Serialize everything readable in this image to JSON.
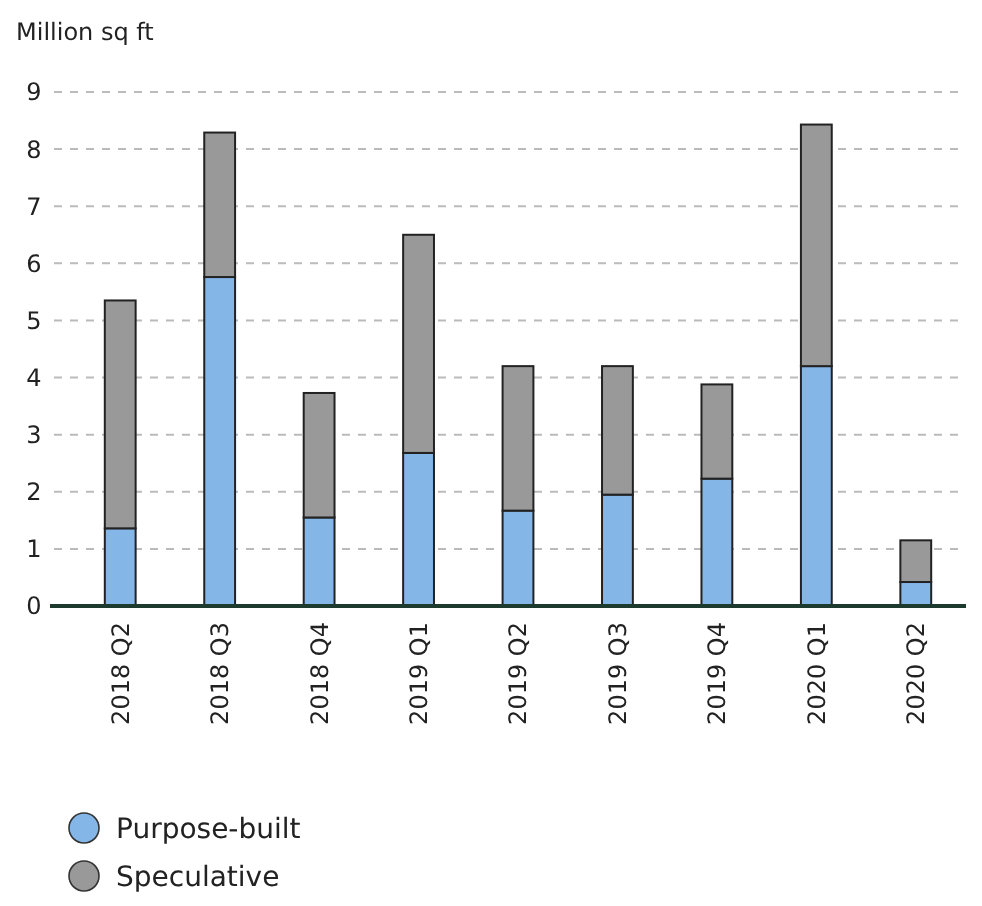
{
  "chart_data": {
    "type": "bar",
    "ylabel": "Million sq ft",
    "stacked": true,
    "categories": [
      "2018 Q2",
      "2018 Q3",
      "2018 Q4",
      "2019 Q1",
      "2019 Q2",
      "2019 Q3",
      "2019 Q4",
      "2020 Q1",
      "2020 Q2"
    ],
    "series": [
      {
        "name": "Purpose-built",
        "color": "#85b6e8",
        "values": [
          1.36,
          5.76,
          1.55,
          2.68,
          1.67,
          1.95,
          2.23,
          4.2,
          0.42
        ]
      },
      {
        "name": "Speculative",
        "color": "#999999",
        "values": [
          3.99,
          2.53,
          2.18,
          3.82,
          2.53,
          2.25,
          1.65,
          4.23,
          0.73
        ]
      }
    ],
    "ylim": [
      0,
      9
    ],
    "yticks": [
      0,
      1,
      2,
      3,
      4,
      5,
      6,
      7,
      8,
      9
    ],
    "grid": "y",
    "legend": "bottom left"
  }
}
